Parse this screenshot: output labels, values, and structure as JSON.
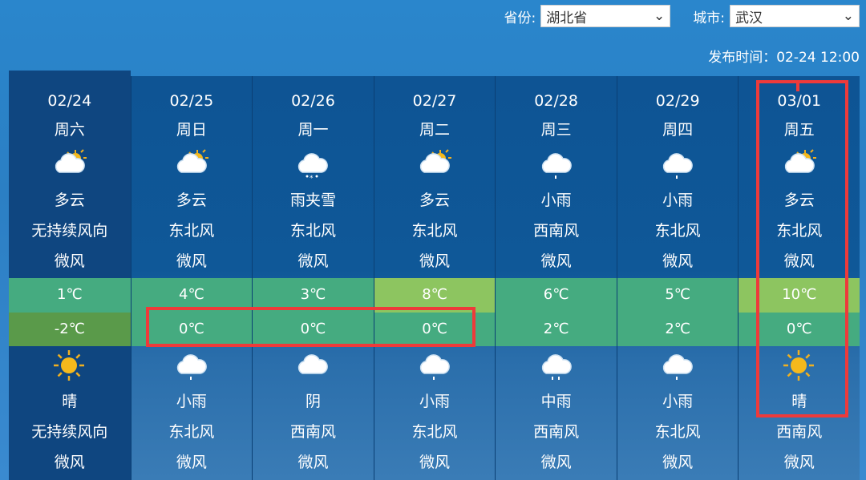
{
  "header": {
    "province_label": "省份:",
    "province_value": "湖北省",
    "city_label": "城市:",
    "city_value": "武汉",
    "publish_time": "发布时间：02-24 12:00"
  },
  "colors": {
    "temp_green": "#45ab80",
    "temp_lime": "#8dc560",
    "temp_olive": "#5a9a4a",
    "highlight": "#ee3a3a"
  },
  "days": [
    {
      "date": "02/24",
      "weekday": "周六",
      "day_icon": "partly-cloudy",
      "day_weather": "多云",
      "day_wind_dir": "无持续风向",
      "day_wind": "微风",
      "high": "1℃",
      "high_color": "#45ab80",
      "low": "-2℃",
      "low_color": "#5a9a4a",
      "night_icon": "sunny",
      "night_weather": "晴",
      "night_wind_dir": "无持续风向",
      "night_wind": "微风"
    },
    {
      "date": "02/25",
      "weekday": "周日",
      "day_icon": "partly-cloudy",
      "day_weather": "多云",
      "day_wind_dir": "东北风",
      "day_wind": "微风",
      "high": "4℃",
      "high_color": "#45ab80",
      "low": "0℃",
      "low_color": "#45ab80",
      "night_icon": "light-rain",
      "night_weather": "小雨",
      "night_wind_dir": "东北风",
      "night_wind": "微风"
    },
    {
      "date": "02/26",
      "weekday": "周一",
      "day_icon": "sleet",
      "day_weather": "雨夹雪",
      "day_wind_dir": "东北风",
      "day_wind": "微风",
      "high": "3℃",
      "high_color": "#45ab80",
      "low": "0℃",
      "low_color": "#45ab80",
      "night_icon": "overcast",
      "night_weather": "阴",
      "night_wind_dir": "西南风",
      "night_wind": "微风"
    },
    {
      "date": "02/27",
      "weekday": "周二",
      "day_icon": "partly-cloudy",
      "day_weather": "多云",
      "day_wind_dir": "东北风",
      "day_wind": "微风",
      "high": "8℃",
      "high_color": "#8dc560",
      "low": "0℃",
      "low_color": "#45ab80",
      "night_icon": "light-rain",
      "night_weather": "小雨",
      "night_wind_dir": "东北风",
      "night_wind": "微风"
    },
    {
      "date": "02/28",
      "weekday": "周三",
      "day_icon": "light-rain",
      "day_weather": "小雨",
      "day_wind_dir": "西南风",
      "day_wind": "微风",
      "high": "6℃",
      "high_color": "#45ab80",
      "low": "2℃",
      "low_color": "#45ab80",
      "night_icon": "moderate-rain",
      "night_weather": "中雨",
      "night_wind_dir": "西南风",
      "night_wind": "微风"
    },
    {
      "date": "02/29",
      "weekday": "周四",
      "day_icon": "light-rain",
      "day_weather": "小雨",
      "day_wind_dir": "东北风",
      "day_wind": "微风",
      "high": "5℃",
      "high_color": "#45ab80",
      "low": "2℃",
      "low_color": "#45ab80",
      "night_icon": "light-rain",
      "night_weather": "小雨",
      "night_wind_dir": "东北风",
      "night_wind": "微风"
    },
    {
      "date": "03/01",
      "weekday": "周五",
      "day_icon": "partly-cloudy",
      "day_weather": "多云",
      "day_wind_dir": "东北风",
      "day_wind": "微风",
      "high": "10℃",
      "high_color": "#8dc560",
      "low": "0℃",
      "low_color": "#45ab80",
      "night_icon": "sunny",
      "night_weather": "晴",
      "night_wind_dir": "西南风",
      "night_wind": "微风"
    }
  ]
}
